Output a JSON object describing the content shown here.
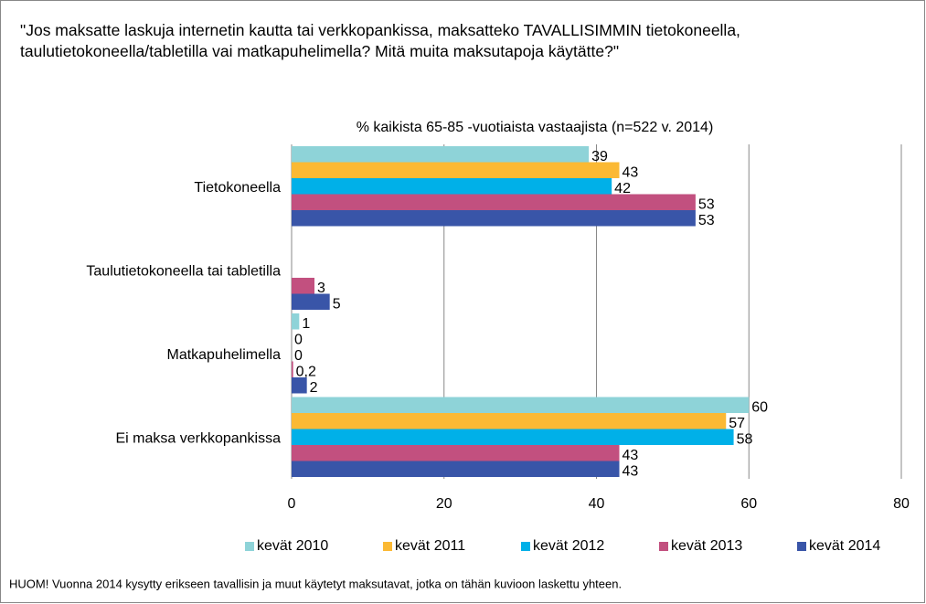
{
  "chart_data": {
    "type": "bar",
    "orientation": "horizontal",
    "title": "\"Jos maksatte laskuja internetin kautta tai verkkopankissa, maksatteko TAVALLISIMMIN tietokoneella, taulutietokoneella/tabletilla vai matkapuhelimella? Mitä muita maksutapoja käytätte?\"",
    "subtitle": "% kaikista 65-85 -vuotiaista vastaajista (n=522 v. 2014)",
    "footnote": "HUOM! Vuonna 2014  kysytty erikseen tavallisin ja muut käytetyt maksutavat, jotka on tähän kuvioon laskettu yhteen.",
    "categories": [
      "Tietokoneella",
      "Taulutietokoneella tai tabletilla",
      "Matkapuhelimella",
      "Ei maksa verkkopankissa"
    ],
    "series": [
      {
        "name": "kevät 2010",
        "color": "#8ed3d8",
        "values": [
          39,
          null,
          1,
          60
        ]
      },
      {
        "name": "kevät 2011",
        "color": "#fbb934",
        "values": [
          43,
          null,
          0,
          57
        ]
      },
      {
        "name": "kevät 2012",
        "color": "#00b0e8",
        "values": [
          42,
          null,
          0,
          58
        ]
      },
      {
        "name": "kevät 2013",
        "color": "#c2507f",
        "values": [
          53,
          3,
          0.2,
          43
        ],
        "value_labels": [
          "53",
          "3",
          "0,2",
          "43"
        ]
      },
      {
        "name": "kevät 2014",
        "color": "#3955a8",
        "values": [
          53,
          5,
          2,
          43
        ]
      }
    ],
    "xlim": [
      0,
      80
    ],
    "xticks": [
      0,
      20,
      40,
      60,
      80
    ],
    "grid": true,
    "legend": "bottom"
  }
}
